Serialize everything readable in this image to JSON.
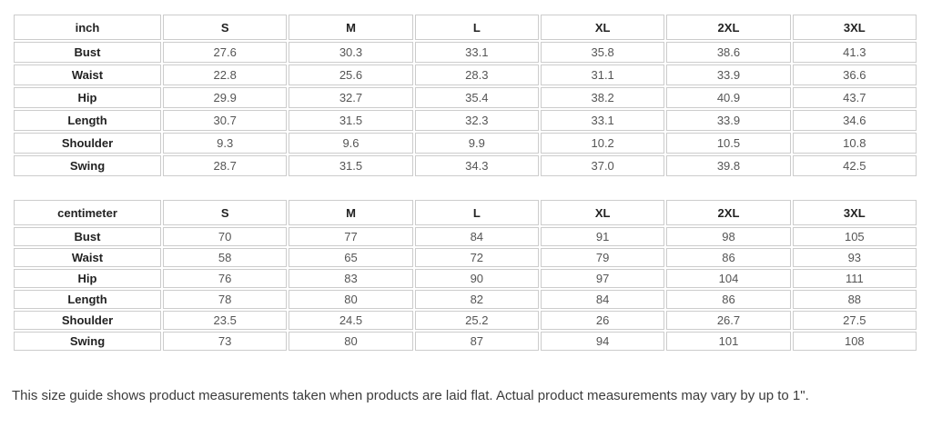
{
  "tables": [
    {
      "unit_label": "inch",
      "columns": [
        "S",
        "M",
        "L",
        "XL",
        "2XL",
        "3XL"
      ],
      "rows": [
        {
          "label": "Bust",
          "values": [
            "27.6",
            "30.3",
            "33.1",
            "35.8",
            "38.6",
            "41.3"
          ]
        },
        {
          "label": "Waist",
          "values": [
            "22.8",
            "25.6",
            "28.3",
            "31.1",
            "33.9",
            "36.6"
          ]
        },
        {
          "label": "Hip",
          "values": [
            "29.9",
            "32.7",
            "35.4",
            "38.2",
            "40.9",
            "43.7"
          ]
        },
        {
          "label": "Length",
          "values": [
            "30.7",
            "31.5",
            "32.3",
            "33.1",
            "33.9",
            "34.6"
          ]
        },
        {
          "label": "Shoulder",
          "values": [
            "9.3",
            "9.6",
            "9.9",
            "10.2",
            "10.5",
            "10.8"
          ]
        },
        {
          "label": "Swing",
          "values": [
            "28.7",
            "31.5",
            "34.3",
            "37.0",
            "39.8",
            "42.5"
          ]
        }
      ]
    },
    {
      "unit_label": "centimeter",
      "columns": [
        "S",
        "M",
        "L",
        "XL",
        "2XL",
        "3XL"
      ],
      "rows": [
        {
          "label": "Bust",
          "values": [
            "70",
            "77",
            "84",
            "91",
            "98",
            "105"
          ]
        },
        {
          "label": "Waist",
          "values": [
            "58",
            "65",
            "72",
            "79",
            "86",
            "93"
          ]
        },
        {
          "label": "Hip",
          "values": [
            "76",
            "83",
            "90",
            "97",
            "104",
            "111"
          ]
        },
        {
          "label": "Length",
          "values": [
            "78",
            "80",
            "82",
            "84",
            "86",
            "88"
          ]
        },
        {
          "label": "Shoulder",
          "values": [
            "23.5",
            "24.5",
            "25.2",
            "26",
            "26.7",
            "27.5"
          ]
        },
        {
          "label": "Swing",
          "values": [
            "73",
            "80",
            "87",
            "94",
            "101",
            "108"
          ]
        }
      ]
    }
  ],
  "note": "This size guide shows product measurements taken when products are laid flat. Actual product measurements may vary by up to 1\".",
  "colors": {
    "border": "#cccccc",
    "header_text": "#222222",
    "value_text": "#555555",
    "note_text": "#3c3c3c"
  }
}
